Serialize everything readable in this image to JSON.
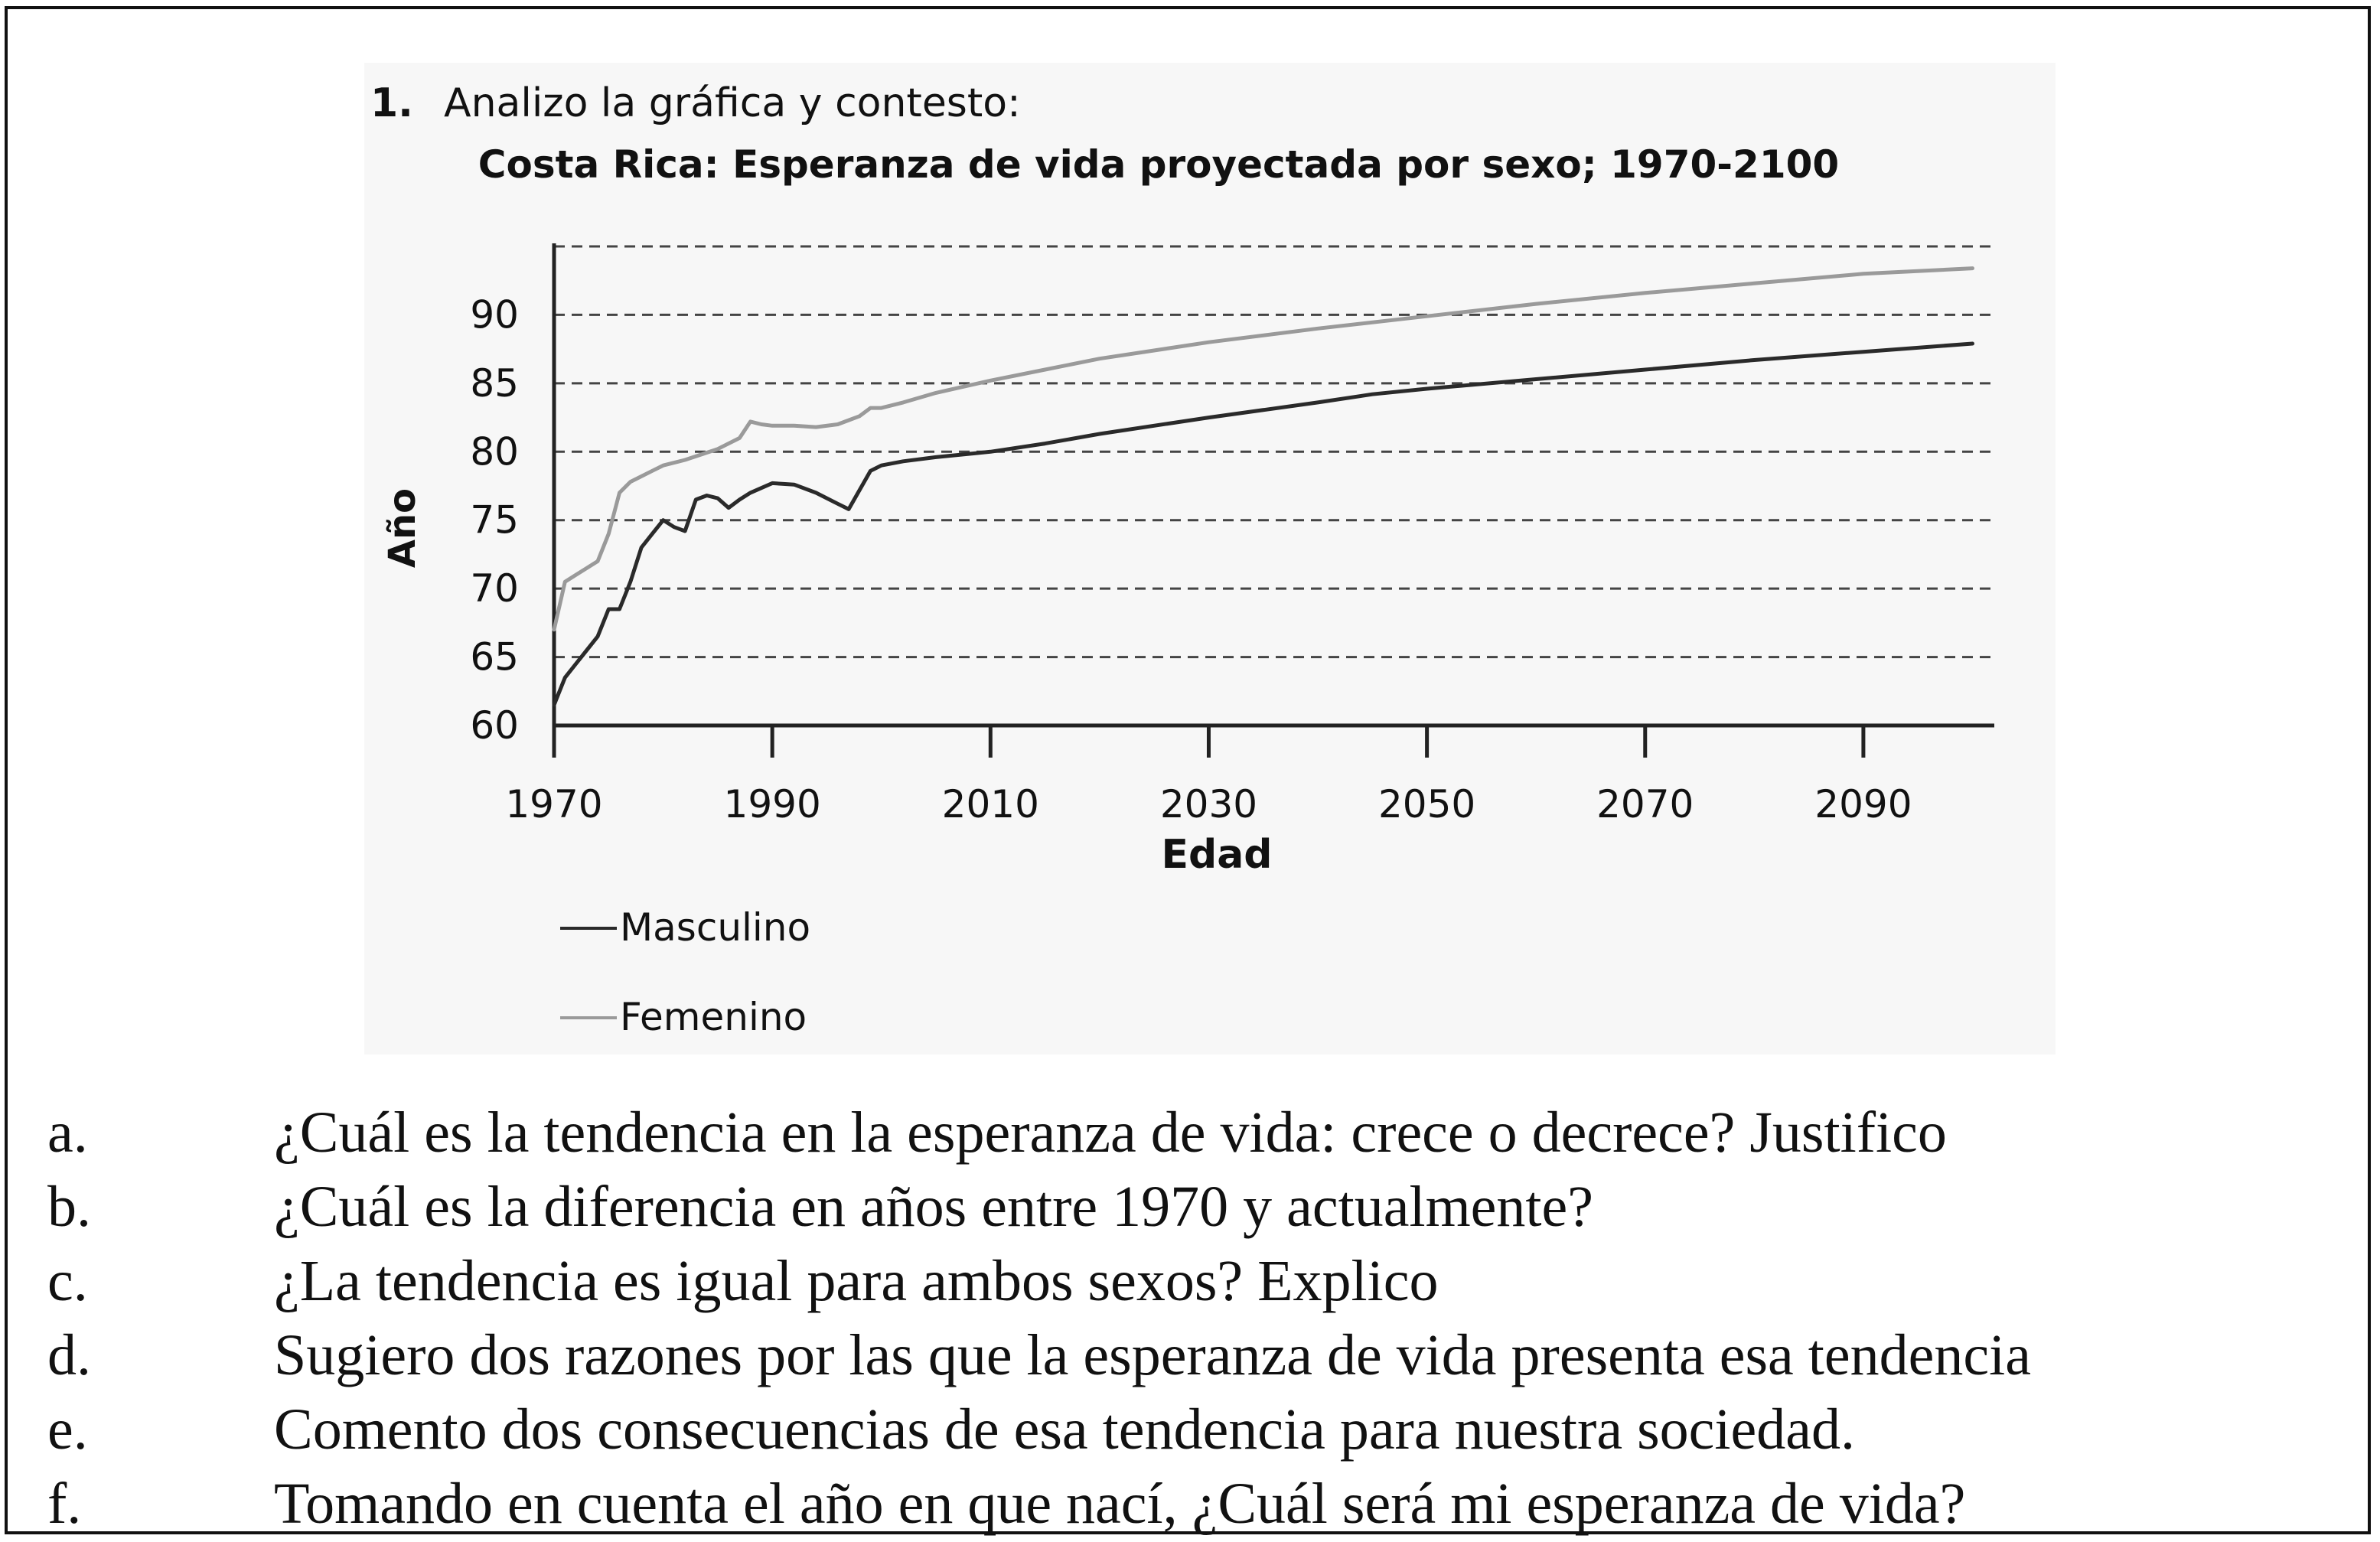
{
  "exercise": {
    "number": "1.",
    "instruction": "Analizo la gráfica y contesto:"
  },
  "colors": {
    "masculino": "#2a2a2a",
    "femenino": "#9a9a9a",
    "grid": "#444444",
    "axis": "#222222"
  },
  "chart_data": {
    "type": "line",
    "title": "Costa Rica: Esperanza de vida proyectada por sexo; 1970-2100",
    "xlabel": "Edad",
    "ylabel": "Año",
    "xlim": [
      1970,
      2102
    ],
    "ylim": [
      60,
      95
    ],
    "x_ticks": [
      1970,
      1990,
      2010,
      2030,
      2050,
      2070,
      2090
    ],
    "x_tick_labels": [
      "1970",
      "1990",
      "2010",
      "2030",
      "2050",
      "2070",
      "2090"
    ],
    "y_ticks": [
      60,
      65,
      70,
      75,
      80,
      85,
      90
    ],
    "y_tick_labels": [
      "60",
      "65",
      "70",
      "75",
      "80",
      "85",
      "90"
    ],
    "grid_lines_y": [
      65,
      70,
      75,
      80,
      85,
      90,
      95
    ],
    "grid": true,
    "legend_position": "bottom-left",
    "series": [
      {
        "name": "Masculino",
        "legend_label": "—Masculino",
        "color": "#2a2a2a",
        "x": [
          1970,
          1971,
          1972,
          1974,
          1975,
          1976,
          1977,
          1978,
          1979,
          1980,
          1981,
          1982,
          1983,
          1984,
          1985,
          1986,
          1987,
          1988,
          1990,
          1992,
          1994,
          1996,
          1997,
          1998,
          1999,
          2000,
          2002,
          2005,
          2010,
          2015,
          2020,
          2030,
          2040,
          2045,
          2050,
          2060,
          2070,
          2080,
          2090,
          2100
        ],
        "y": [
          61.5,
          63.5,
          64.5,
          66.5,
          68.5,
          68.5,
          70.5,
          73,
          74,
          75,
          74.5,
          74.2,
          76.5,
          76.8,
          76.6,
          75.9,
          76.5,
          77,
          77.7,
          77.6,
          77,
          76.2,
          75.8,
          77.2,
          78.6,
          79,
          79.3,
          79.6,
          80,
          80.6,
          81.3,
          82.5,
          83.6,
          84.2,
          84.6,
          85.3,
          86,
          86.7,
          87.3,
          87.9
        ]
      },
      {
        "name": "Femenino",
        "legend_label": "—Femenino",
        "color": "#9a9a9a",
        "x": [
          1970,
          1971,
          1972,
          1974,
          1975,
          1976,
          1977,
          1979,
          1980,
          1982,
          1985,
          1987,
          1988,
          1989,
          1990,
          1992,
          1994,
          1996,
          1997,
          1998,
          1999,
          2000,
          2002,
          2005,
          2010,
          2015,
          2020,
          2030,
          2040,
          2050,
          2060,
          2070,
          2080,
          2090,
          2100
        ],
        "y": [
          67,
          70.5,
          71,
          72,
          74,
          77,
          77.8,
          78.6,
          79,
          79.4,
          80.2,
          81,
          82.2,
          82,
          81.9,
          81.9,
          81.8,
          82,
          82.3,
          82.6,
          83.2,
          83.2,
          83.6,
          84.3,
          85.2,
          86,
          86.8,
          88,
          89,
          89.9,
          90.8,
          91.6,
          92.3,
          93,
          93.4
        ]
      }
    ]
  },
  "questions": [
    {
      "letter": "a.",
      "text": "¿Cuál es la tendencia en la esperanza de vida: crece o decrece? Justifico"
    },
    {
      "letter": "b.",
      "text": "¿Cuál es la diferencia en años entre 1970 y actualmente?"
    },
    {
      "letter": "c.",
      "text": "¿La tendencia es igual para ambos sexos? Explico"
    },
    {
      "letter": "d.",
      "text": "Sugiero dos razones por las que la esperanza de vida presenta esa tendencia"
    },
    {
      "letter": "e.",
      "text": "Comento dos consecuencias de esa tendencia para nuestra sociedad."
    },
    {
      "letter": "f.",
      "text": "Tomando en cuenta el año en que nací, ¿Cuál será mi esperanza de vida?"
    }
  ]
}
